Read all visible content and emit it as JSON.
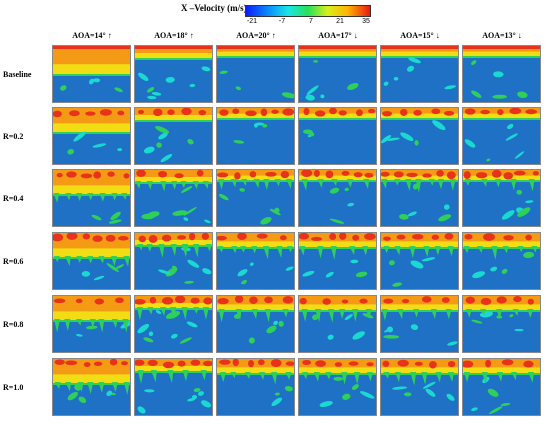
{
  "colorbar": {
    "title": "X –Velocity (m/s)",
    "ticks": [
      "-21",
      "-7",
      "7",
      "21",
      "35"
    ]
  },
  "columns": [
    "AOA=14° ↑",
    "AOA=18° ↑",
    "AOA=20° ↑",
    "AOA=17° ↓",
    "AOA=15° ↓",
    "AOA=13° ↓"
  ],
  "rows": [
    "Baseline",
    "R=0.2",
    "R=0.4",
    "R=0.6",
    "R=0.8",
    "R=1.0"
  ],
  "colors": {
    "background_flow": "#1e71c4",
    "yellow": "#f2dc14",
    "orange": "#f59a14",
    "red": "#e8331a",
    "green": "#2fd05a",
    "cyan": "#1ad9d0"
  }
}
